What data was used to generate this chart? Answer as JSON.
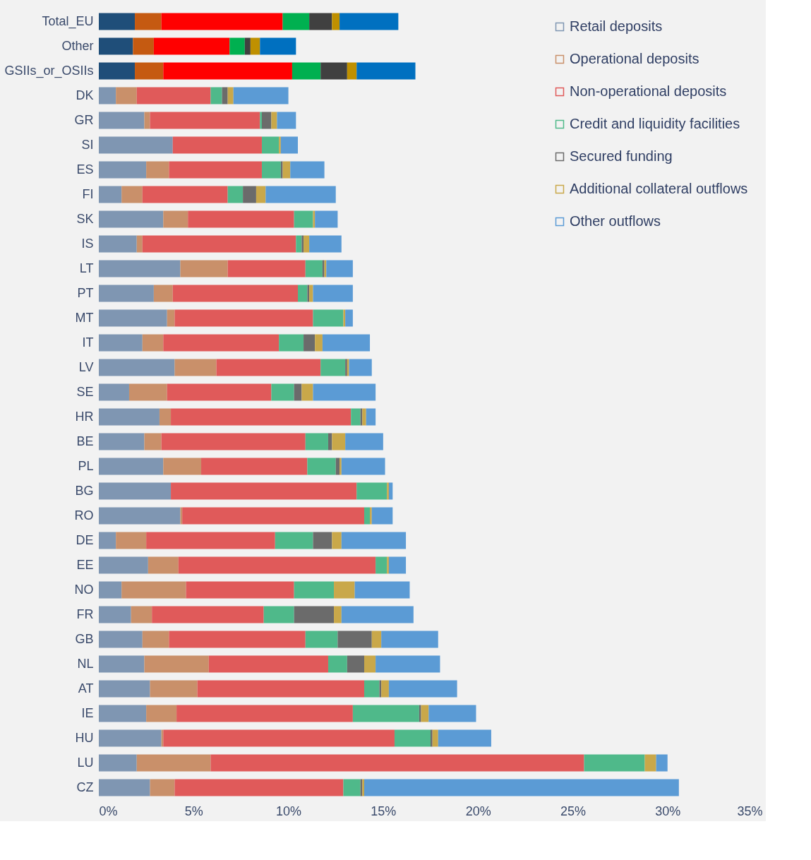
{
  "chart_data": {
    "type": "bar",
    "orientation": "horizontal",
    "stacked": true,
    "categories": [
      "Total_EU",
      "Other",
      "GSIIs_or_OSIIs",
      "DK",
      "GR",
      "SI",
      "ES",
      "FI",
      "SK",
      "IS",
      "LT",
      "PT",
      "MT",
      "IT",
      "LV",
      "SE",
      "HR",
      "BE",
      "PL",
      "BG",
      "RO",
      "DE",
      "EE",
      "NO",
      "FR",
      "GB",
      "NL",
      "AT",
      "IE",
      "HU",
      "LU",
      "CZ"
    ],
    "series": [
      {
        "name": "Retail deposits",
        "color": "#7f96b2",
        "colors": [
          "#1f4e79",
          "#1f4e79",
          "#1f4e79",
          "#7f96b2",
          "#7f96b2",
          "#7f96b2",
          "#7f96b2",
          "#7f96b2",
          "#7f96b2",
          "#7f96b2",
          "#7f96b2",
          "#7f96b2",
          "#7f96b2",
          "#7f96b2",
          "#7f96b2",
          "#7f96b2",
          "#7f96b2",
          "#7f96b2",
          "#7f96b2",
          "#7f96b2",
          "#7f96b2",
          "#7f96b2",
          "#7f96b2",
          "#7f96b2",
          "#7f96b2",
          "#7f96b2",
          "#7f96b2",
          "#7f96b2",
          "#7f96b2",
          "#7f96b2",
          "#7f96b2",
          "#7f96b2"
        ],
        "values": [
          1.9,
          1.8,
          1.9,
          0.9,
          2.4,
          3.9,
          2.5,
          1.2,
          3.4,
          2.0,
          4.3,
          2.9,
          3.6,
          2.3,
          4.0,
          1.6,
          3.2,
          2.4,
          3.4,
          3.8,
          4.3,
          0.9,
          2.6,
          1.2,
          1.7,
          2.3,
          2.4,
          2.7,
          2.5,
          3.3,
          2.0,
          2.7
        ]
      },
      {
        "name": "Operational deposits",
        "color": "#c9906a",
        "colors": [
          "#c55a11",
          "#c55a11",
          "#c55a11",
          "#c9906a",
          "#c9906a",
          "#c9906a",
          "#c9906a",
          "#c9906a",
          "#c9906a",
          "#c9906a",
          "#c9906a",
          "#c9906a",
          "#c9906a",
          "#c9906a",
          "#c9906a",
          "#c9906a",
          "#c9906a",
          "#c9906a",
          "#c9906a",
          "#c9906a",
          "#c9906a",
          "#c9906a",
          "#c9906a",
          "#c9906a",
          "#c9906a",
          "#c9906a",
          "#c9906a",
          "#c9906a",
          "#c9906a",
          "#c9906a",
          "#c9906a",
          "#c9906a"
        ],
        "values": [
          1.4,
          1.1,
          1.5,
          1.1,
          0.3,
          0,
          1.2,
          1.1,
          1.3,
          0.3,
          2.5,
          1.0,
          0.4,
          1.1,
          2.2,
          2.0,
          0.6,
          0.9,
          2.0,
          0,
          0.1,
          1.6,
          1.6,
          3.4,
          1.1,
          1.4,
          3.4,
          2.5,
          1.6,
          0.1,
          3.9,
          1.3
        ]
      },
      {
        "name": "Non-operational deposits",
        "color": "#e05a5a",
        "colors": [
          "#ff0000",
          "#ff0000",
          "#ff0000",
          "#e05a5a",
          "#e05a5a",
          "#e05a5a",
          "#e05a5a",
          "#e05a5a",
          "#e05a5a",
          "#e05a5a",
          "#e05a5a",
          "#e05a5a",
          "#e05a5a",
          "#e05a5a",
          "#e05a5a",
          "#e05a5a",
          "#e05a5a",
          "#e05a5a",
          "#e05a5a",
          "#e05a5a",
          "#e05a5a",
          "#e05a5a",
          "#e05a5a",
          "#e05a5a",
          "#e05a5a",
          "#e05a5a",
          "#e05a5a",
          "#e05a5a",
          "#e05a5a",
          "#e05a5a",
          "#e05a5a",
          "#e05a5a"
        ],
        "values": [
          6.4,
          4.0,
          6.8,
          3.9,
          5.8,
          4.7,
          4.9,
          4.5,
          5.6,
          8.1,
          4.1,
          6.6,
          7.3,
          6.1,
          5.5,
          5.5,
          9.5,
          7.6,
          5.6,
          9.8,
          9.6,
          6.8,
          10.4,
          5.7,
          5.9,
          7.2,
          6.3,
          8.8,
          9.3,
          12.2,
          19.7,
          8.9
        ]
      },
      {
        "name": "Credit and liquidity facilities",
        "color": "#4fb98a",
        "colors": [
          "#00b050",
          "#00b050",
          "#00b050",
          "#4fb98a",
          "#4fb98a",
          "#4fb98a",
          "#4fb98a",
          "#4fb98a",
          "#4fb98a",
          "#4fb98a",
          "#4fb98a",
          "#4fb98a",
          "#4fb98a",
          "#4fb98a",
          "#4fb98a",
          "#4fb98a",
          "#4fb98a",
          "#4fb98a",
          "#4fb98a",
          "#4fb98a",
          "#4fb98a",
          "#4fb98a",
          "#4fb98a",
          "#4fb98a",
          "#4fb98a",
          "#4fb98a",
          "#4fb98a",
          "#4fb98a",
          "#4fb98a",
          "#4fb98a",
          "#4fb98a",
          "#4fb98a"
        ],
        "values": [
          1.4,
          0.8,
          1.5,
          0.6,
          0.1,
          0.9,
          1.0,
          0.8,
          1.0,
          0.3,
          0.9,
          0.5,
          1.6,
          1.3,
          1.3,
          1.2,
          0.5,
          1.2,
          1.5,
          1.6,
          0.3,
          2.0,
          0.6,
          2.1,
          1.6,
          1.7,
          1.0,
          0.8,
          3.5,
          1.9,
          3.2,
          0.9
        ]
      },
      {
        "name": "Secured funding",
        "color": "#6b6b6b",
        "colors": [
          "#404040",
          "#404040",
          "#404040",
          "#6b6b6b",
          "#6b6b6b",
          "#6b6b6b",
          "#6b6b6b",
          "#6b6b6b",
          "#6b6b6b",
          "#6b6b6b",
          "#6b6b6b",
          "#6b6b6b",
          "#6b6b6b",
          "#6b6b6b",
          "#6b6b6b",
          "#6b6b6b",
          "#6b6b6b",
          "#6b6b6b",
          "#6b6b6b",
          "#6b6b6b",
          "#6b6b6b",
          "#6b6b6b",
          "#6b6b6b",
          "#6b6b6b",
          "#6b6b6b",
          "#6b6b6b",
          "#6b6b6b",
          "#6b6b6b",
          "#6b6b6b",
          "#6b6b6b",
          "#6b6b6b",
          "#6b6b6b"
        ],
        "values": [
          1.2,
          0.3,
          1.4,
          0.3,
          0.5,
          0,
          0.1,
          0.7,
          0,
          0.1,
          0.1,
          0.1,
          0,
          0.6,
          0.1,
          0.4,
          0.1,
          0.2,
          0.2,
          0,
          0,
          1.0,
          0,
          0,
          2.1,
          1.8,
          0.9,
          0.1,
          0.1,
          0.1,
          0,
          0.1
        ]
      },
      {
        "name": "Additional collateral outflows",
        "color": "#c9a84a",
        "colors": [
          "#bf9000",
          "#bf9000",
          "#bf9000",
          "#c9a84a",
          "#c9a84a",
          "#c9a84a",
          "#c9a84a",
          "#c9a84a",
          "#c9a84a",
          "#c9a84a",
          "#c9a84a",
          "#c9a84a",
          "#c9a84a",
          "#c9a84a",
          "#c9a84a",
          "#c9a84a",
          "#c9a84a",
          "#c9a84a",
          "#c9a84a",
          "#c9a84a",
          "#c9a84a",
          "#c9a84a",
          "#c9a84a",
          "#c9a84a",
          "#c9a84a",
          "#c9a84a",
          "#c9a84a",
          "#c9a84a",
          "#c9a84a",
          "#c9a84a",
          "#c9a84a",
          "#c9a84a"
        ],
        "values": [
          0.4,
          0.5,
          0.5,
          0.3,
          0.3,
          0.1,
          0.4,
          0.5,
          0.1,
          0.3,
          0.1,
          0.2,
          0.1,
          0.4,
          0.1,
          0.6,
          0.2,
          0.7,
          0.1,
          0.1,
          0.1,
          0.5,
          0.1,
          1.1,
          0.4,
          0.5,
          0.6,
          0.4,
          0.4,
          0.3,
          0.6,
          0.1
        ]
      },
      {
        "name": "Other outflows",
        "color": "#5b9bd5",
        "colors": [
          "#0070c0",
          "#0070c0",
          "#0070c0",
          "#5b9bd5",
          "#5b9bd5",
          "#5b9bd5",
          "#5b9bd5",
          "#5b9bd5",
          "#5b9bd5",
          "#5b9bd5",
          "#5b9bd5",
          "#5b9bd5",
          "#5b9bd5",
          "#5b9bd5",
          "#5b9bd5",
          "#5b9bd5",
          "#5b9bd5",
          "#5b9bd5",
          "#5b9bd5",
          "#5b9bd5",
          "#5b9bd5",
          "#5b9bd5",
          "#5b9bd5",
          "#5b9bd5",
          "#5b9bd5",
          "#5b9bd5",
          "#5b9bd5",
          "#5b9bd5",
          "#5b9bd5",
          "#5b9bd5",
          "#5b9bd5",
          "#5b9bd5"
        ],
        "values": [
          3.1,
          1.9,
          3.1,
          2.9,
          1.0,
          0.9,
          1.8,
          3.7,
          1.2,
          1.7,
          1.4,
          2.1,
          0.4,
          2.5,
          1.2,
          3.3,
          0.5,
          2.0,
          2.3,
          0.2,
          1.1,
          3.4,
          0.9,
          2.9,
          3.8,
          3.0,
          3.4,
          3.6,
          2.5,
          2.8,
          0.6,
          16.6
        ]
      }
    ],
    "xlim": [
      0,
      35
    ],
    "xticks": [
      {
        "value": 0,
        "label": "0%"
      },
      {
        "value": 5,
        "label": "5%"
      },
      {
        "value": 10,
        "label": "10%"
      },
      {
        "value": 15,
        "label": "15%"
      },
      {
        "value": 20,
        "label": "20%"
      },
      {
        "value": 25,
        "label": "25%"
      },
      {
        "value": 30,
        "label": "30%"
      },
      {
        "value": 35,
        "label": "35%"
      }
    ],
    "grid": false,
    "legend": "top right"
  }
}
